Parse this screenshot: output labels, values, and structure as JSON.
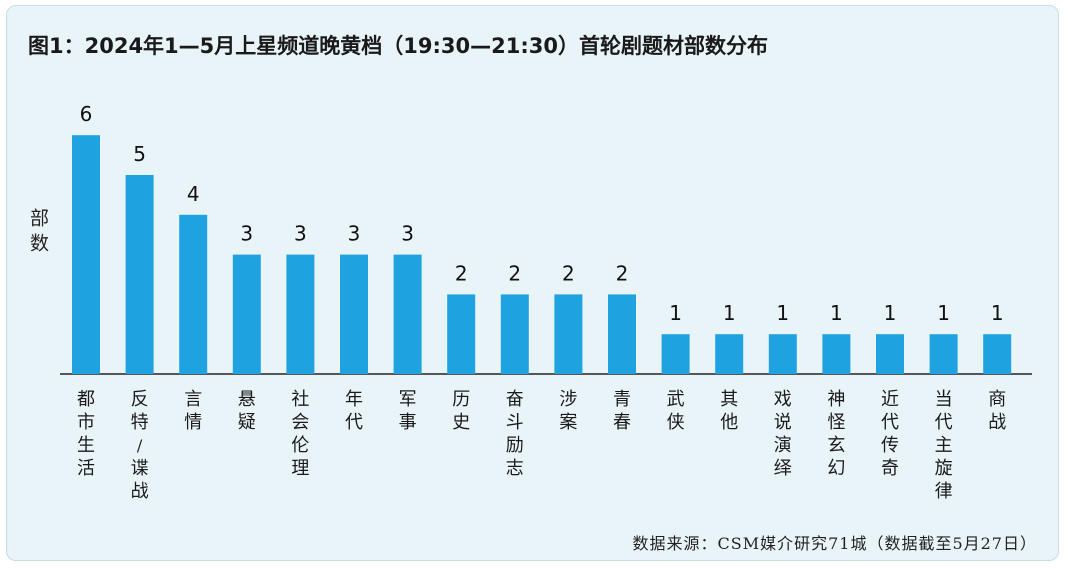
{
  "chart_data": {
    "type": "bar",
    "title": "图1：2024年1—5月上星频道晚黄档（19:30—21:30）首轮剧题材部数分布",
    "ylabel": "部数",
    "xlabel": "",
    "categories": [
      "都市生活",
      "反特/谍战",
      "言情",
      "悬疑",
      "社会伦理",
      "年代",
      "军事",
      "历史",
      "奋斗励志",
      "涉案",
      "青春",
      "武侠",
      "其他",
      "戏说演绎",
      "神怪玄幻",
      "近代传奇",
      "当代主旋律",
      "商战"
    ],
    "values": [
      6,
      5,
      4,
      3,
      3,
      3,
      3,
      2,
      2,
      2,
      2,
      1,
      1,
      1,
      1,
      1,
      1,
      1
    ],
    "ylim": [
      0,
      6
    ],
    "grid": false,
    "bar_color": "#1fa3e0",
    "source": "数据来源：CSM媒介研究71城（数据截至5月27日）"
  },
  "colors": {
    "background": "#e9f4f9",
    "bar": "#1fa3e0",
    "axis": "#222222"
  }
}
